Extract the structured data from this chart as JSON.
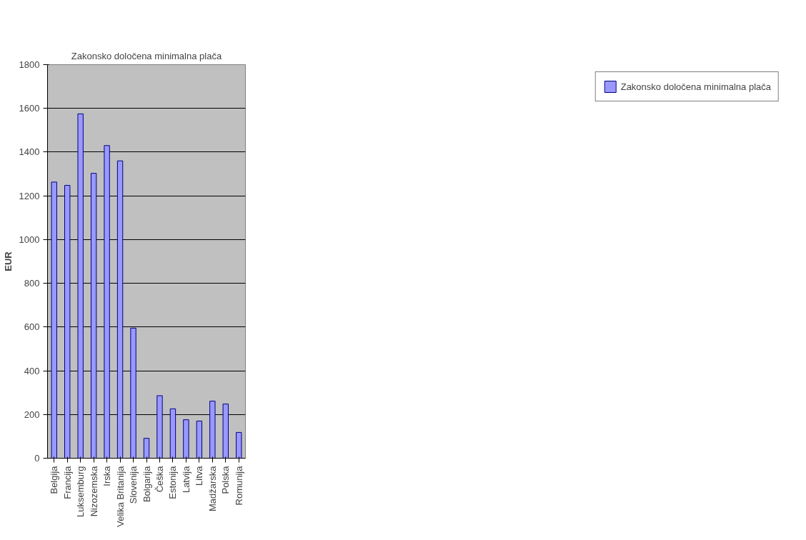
{
  "chart_data": {
    "type": "bar",
    "title": "Zakonsko določena minimalna plača",
    "ylabel": "EUR",
    "categories": [
      "Belgija",
      "Francija",
      "Luksemburg",
      "Nizozemska",
      "Irska",
      "Velika Britanija",
      "Slovenija",
      "Bolgarija",
      "Češka",
      "Estonija",
      "Latvija",
      "Litva",
      "Madžarska",
      "Polska",
      "Romunija"
    ],
    "series": [
      {
        "name": "Zakonsko določena minimalna plača",
        "color": "#9999ff",
        "values": [
          1263,
          1248,
          1575,
          1303,
          1430,
          1360,
          595,
          91,
          286,
          226,
          176,
          170,
          261,
          248,
          118
        ]
      }
    ],
    "ylim": [
      0,
      1800
    ],
    "yticks": [
      0,
      200,
      400,
      600,
      800,
      1000,
      1200,
      1400,
      1600,
      1800
    ],
    "grid": "y",
    "legend": "right"
  }
}
